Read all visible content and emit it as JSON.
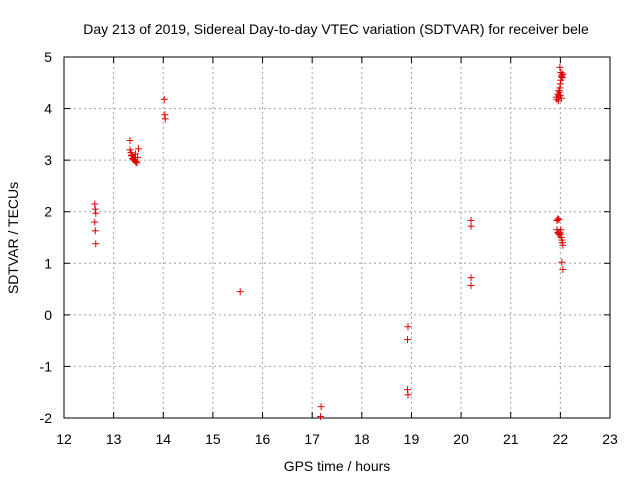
{
  "chart_data": {
    "type": "scatter",
    "title": "Day 213 of 2019, Sidereal Day-to-day VTEC variation (SDTVAR) for receiver bele",
    "xlabel": "GPS time / hours",
    "ylabel": "SDTVAR / TECUs",
    "xlim": [
      12,
      23
    ],
    "ylim": [
      -2,
      5
    ],
    "xticks": [
      "12",
      "13",
      "14",
      "15",
      "16",
      "17",
      "18",
      "19",
      "20",
      "21",
      "22",
      "23"
    ],
    "yticks": [
      "-2",
      "-1",
      "0",
      "1",
      "2",
      "3",
      "4",
      "5"
    ],
    "grid": true,
    "marker": "+",
    "color": "#e00000",
    "series": [
      {
        "name": "SDTVAR",
        "points": [
          [
            12.62,
            2.15
          ],
          [
            12.63,
            2.05
          ],
          [
            12.64,
            1.97
          ],
          [
            12.62,
            1.8
          ],
          [
            12.63,
            1.63
          ],
          [
            12.64,
            1.38
          ],
          [
            13.33,
            3.38
          ],
          [
            13.33,
            3.2
          ],
          [
            13.35,
            3.15
          ],
          [
            13.37,
            3.08
          ],
          [
            13.38,
            3.03
          ],
          [
            13.4,
            3.01
          ],
          [
            13.42,
            3.0
          ],
          [
            13.44,
            2.98
          ],
          [
            13.45,
            2.96
          ],
          [
            13.47,
            2.95
          ],
          [
            13.44,
            3.12
          ],
          [
            13.48,
            3.05
          ],
          [
            13.5,
            3.22
          ],
          [
            13.36,
            3.1
          ],
          [
            14.02,
            4.18
          ],
          [
            14.03,
            3.88
          ],
          [
            14.04,
            3.8
          ],
          [
            15.55,
            0.45
          ],
          [
            17.18,
            -1.78
          ],
          [
            17.17,
            -1.97
          ],
          [
            18.93,
            -0.23
          ],
          [
            18.92,
            -0.48
          ],
          [
            18.92,
            -1.45
          ],
          [
            18.93,
            -1.55
          ],
          [
            20.2,
            1.83
          ],
          [
            20.2,
            1.72
          ],
          [
            20.2,
            0.72
          ],
          [
            20.2,
            0.57
          ],
          [
            21.92,
            4.22
          ],
          [
            21.93,
            4.18
          ],
          [
            21.95,
            4.28
          ],
          [
            21.96,
            4.15
          ],
          [
            21.97,
            4.25
          ],
          [
            21.98,
            4.32
          ],
          [
            21.99,
            4.4
          ],
          [
            22.0,
            4.48
          ],
          [
            22.01,
            4.55
          ],
          [
            22.02,
            4.62
          ],
          [
            22.01,
            4.7
          ],
          [
            21.99,
            4.8
          ],
          [
            22.03,
            4.65
          ],
          [
            22.04,
            4.6
          ],
          [
            22.05,
            4.67
          ],
          [
            22.02,
            4.2
          ],
          [
            21.97,
            4.35
          ],
          [
            22.0,
            4.25
          ],
          [
            21.93,
            1.83
          ],
          [
            21.95,
            1.86
          ],
          [
            21.97,
            1.85
          ],
          [
            21.93,
            1.65
          ],
          [
            21.95,
            1.6
          ],
          [
            21.96,
            1.58
          ],
          [
            21.98,
            1.55
          ],
          [
            22.0,
            1.57
          ],
          [
            22.02,
            1.5
          ],
          [
            22.03,
            1.45
          ],
          [
            22.04,
            1.4
          ],
          [
            22.05,
            1.35
          ],
          [
            22.03,
            1.02
          ],
          [
            22.05,
            0.88
          ],
          [
            21.99,
            1.6
          ],
          [
            22.01,
            1.65
          ]
        ]
      }
    ]
  }
}
